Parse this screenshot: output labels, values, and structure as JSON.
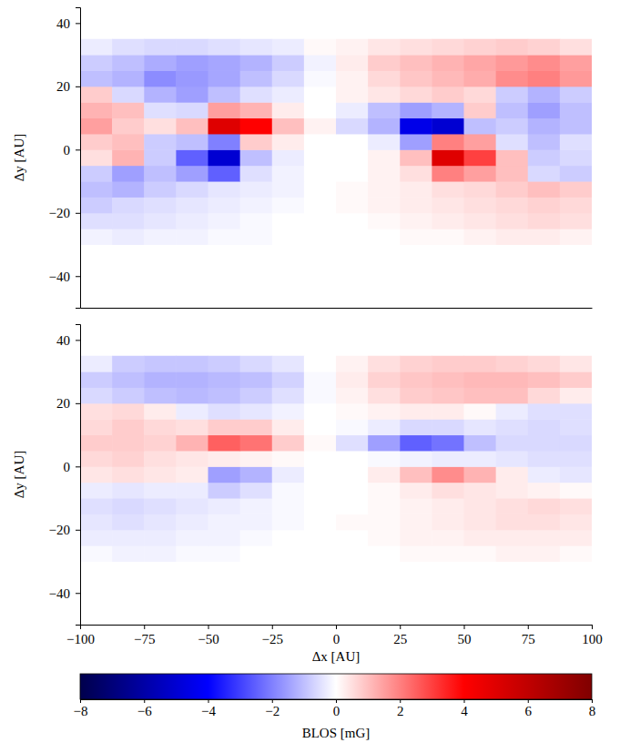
{
  "chart_data": [
    {
      "type": "heatmap",
      "x": [
        -93.75,
        -81.25,
        -68.75,
        -56.25,
        -43.75,
        -31.25,
        -18.75,
        -6.25,
        6.25,
        18.75,
        31.25,
        43.75,
        56.25,
        68.75,
        81.25,
        93.75
      ],
      "y": [
        -27.5,
        -22.5,
        -17.5,
        -12.5,
        -7.5,
        -2.5,
        2.5,
        7.5,
        12.5,
        17.5,
        22.5,
        27.5,
        32.5
      ],
      "values": [
        [
          -0.2,
          -0.3,
          -0.2,
          -0.2,
          -0.1,
          -0.1,
          0,
          0,
          0,
          0,
          0.1,
          0.1,
          0.2,
          0.3,
          0.3,
          0.2
        ],
        [
          -0.5,
          -0.5,
          -0.4,
          -0.3,
          -0.2,
          -0.1,
          0,
          0,
          0,
          0.1,
          0.2,
          0.3,
          0.4,
          0.5,
          0.6,
          0.5
        ],
        [
          -0.8,
          -0.6,
          -0.5,
          -0.4,
          -0.3,
          -0.2,
          -0.1,
          0,
          0.1,
          0.2,
          0.3,
          0.4,
          0.5,
          0.6,
          0.7,
          0.6
        ],
        [
          -1.0,
          -1.2,
          -0.8,
          -0.6,
          -0.4,
          -0.3,
          -0.2,
          0,
          0.1,
          0.2,
          0.3,
          0.5,
          0.6,
          0.8,
          1.0,
          0.8
        ],
        [
          -0.8,
          -1.5,
          -1.0,
          -1.5,
          -2.5,
          -0.5,
          -0.2,
          0,
          0,
          0.2,
          0.5,
          2.0,
          1.5,
          1.0,
          -0.6,
          -0.8
        ],
        [
          0.5,
          1.2,
          -0.8,
          -2.5,
          -5.0,
          -1.0,
          -0.3,
          0,
          0,
          0.2,
          1.0,
          5.0,
          3.0,
          1.0,
          -0.8,
          -0.6
        ],
        [
          0.8,
          1.0,
          -0.8,
          -1.0,
          -2.0,
          0.8,
          0.3,
          0,
          0,
          -0.3,
          -1.5,
          2.0,
          1.5,
          -0.5,
          -1.0,
          -0.5
        ],
        [
          1.5,
          0.8,
          0.5,
          1.0,
          5.0,
          4.0,
          1.0,
          0.2,
          -0.6,
          -1.2,
          -4.5,
          -5.0,
          -1.0,
          -0.8,
          -1.2,
          -1.0
        ],
        [
          1.2,
          1.0,
          -0.5,
          -0.6,
          1.5,
          1.2,
          0.3,
          0,
          -0.3,
          -1.0,
          -1.5,
          -1.2,
          0.8,
          -1.0,
          -1.5,
          -1.0
        ],
        [
          0.8,
          -0.6,
          -1.2,
          -1.5,
          -1.0,
          -0.5,
          -0.3,
          0,
          0.2,
          0.4,
          0.6,
          0.8,
          0.6,
          -0.8,
          -1.2,
          -0.8
        ],
        [
          -1.0,
          -1.2,
          -1.8,
          -1.6,
          -1.4,
          -1.0,
          -0.6,
          -0.1,
          0.2,
          0.6,
          0.9,
          1.1,
          1.3,
          1.8,
          2.0,
          1.6
        ],
        [
          -0.8,
          -1.0,
          -1.3,
          -1.5,
          -1.4,
          -1.2,
          -0.8,
          -0.2,
          0.3,
          0.8,
          1.0,
          1.2,
          1.4,
          1.6,
          1.8,
          1.5
        ],
        [
          -0.3,
          -0.5,
          -0.6,
          -0.6,
          -0.5,
          -0.4,
          -0.3,
          0.1,
          0.2,
          0.4,
          0.5,
          0.6,
          0.7,
          0.8,
          0.7,
          0.5
        ]
      ],
      "xlim": [
        -100,
        100
      ],
      "ylim": [
        -50,
        45
      ],
      "yticks": [
        {
          "value": -40,
          "label": "−40"
        },
        {
          "value": -20,
          "label": "−20"
        },
        0,
        20,
        40
      ],
      "ylabel": "Δy [AU]",
      "tick_labels": "y"
    },
    {
      "type": "heatmap",
      "x": [
        -93.75,
        -81.25,
        -68.75,
        -56.25,
        -43.75,
        -31.25,
        -18.75,
        -6.25,
        6.25,
        18.75,
        31.25,
        43.75,
        56.25,
        68.75,
        81.25,
        93.75
      ],
      "y": [
        -27.5,
        -22.5,
        -17.5,
        -12.5,
        -7.5,
        -2.5,
        2.5,
        7.5,
        12.5,
        17.5,
        22.5,
        27.5,
        32.5
      ],
      "values": [
        [
          -0.1,
          -0.2,
          -0.2,
          -0.1,
          -0.1,
          0,
          0,
          0,
          0,
          0,
          0.1,
          0.1,
          0.1,
          0.2,
          0.2,
          0.1
        ],
        [
          -0.3,
          -0.3,
          -0.3,
          -0.2,
          -0.2,
          -0.1,
          0,
          0,
          0,
          0.1,
          0.2,
          0.2,
          0.3,
          0.3,
          0.3,
          0.3
        ],
        [
          -0.4,
          -0.5,
          -0.4,
          -0.3,
          -0.2,
          -0.2,
          -0.1,
          0,
          0.1,
          0.1,
          0.2,
          0.3,
          0.4,
          0.5,
          0.5,
          0.4
        ],
        [
          -0.5,
          -0.6,
          -0.5,
          -0.4,
          -0.3,
          -0.2,
          -0.1,
          0,
          0,
          0.1,
          0.2,
          0.3,
          0.4,
          0.5,
          0.6,
          0.5
        ],
        [
          -0.3,
          -0.4,
          -0.3,
          -0.3,
          -0.8,
          -0.5,
          -0.1,
          0,
          0,
          0.1,
          0.3,
          0.5,
          0.4,
          0.3,
          0.2,
          0.1
        ],
        [
          0.4,
          0.5,
          0.4,
          0.3,
          -1.5,
          -1.2,
          -0.3,
          0,
          0,
          0.3,
          1.0,
          1.8,
          1.2,
          0.3,
          -0.3,
          -0.4
        ],
        [
          0.6,
          0.7,
          0.5,
          0.4,
          0.3,
          0.2,
          0.1,
          0,
          0,
          -0.1,
          -0.2,
          -0.3,
          -0.3,
          -0.4,
          -0.5,
          -0.5
        ],
        [
          0.8,
          0.8,
          0.7,
          1.2,
          2.5,
          2.2,
          0.8,
          0.1,
          -0.5,
          -1.5,
          -2.5,
          -2.2,
          -1.0,
          -0.6,
          -0.6,
          -0.6
        ],
        [
          0.6,
          0.8,
          0.6,
          0.5,
          0.8,
          0.8,
          0.3,
          0,
          -0.1,
          -0.3,
          -0.6,
          -0.6,
          -0.4,
          -0.5,
          -0.6,
          -0.5
        ],
        [
          0.5,
          0.6,
          0.3,
          -0.3,
          -0.5,
          -0.4,
          -0.2,
          0,
          0.1,
          0.2,
          0.3,
          0.3,
          0.1,
          -0.3,
          -0.5,
          -0.5
        ],
        [
          -0.6,
          -0.8,
          -1.0,
          -1.1,
          -1.0,
          -0.8,
          -0.5,
          -0.1,
          0.2,
          0.5,
          0.8,
          0.9,
          1.0,
          1.0,
          0.6,
          0.3
        ],
        [
          -0.8,
          -1.0,
          -1.2,
          -1.2,
          -1.1,
          -1.0,
          -0.7,
          -0.1,
          0.3,
          0.7,
          0.9,
          1.0,
          1.1,
          1.1,
          1.0,
          0.8
        ],
        [
          -0.3,
          -0.8,
          -0.9,
          -0.9,
          -0.8,
          -0.6,
          -0.4,
          0,
          0.2,
          0.5,
          0.7,
          0.8,
          0.8,
          0.7,
          0.6,
          0.4
        ]
      ],
      "xlim": [
        -100,
        100
      ],
      "ylim": [
        -50,
        45
      ],
      "xticks": [
        {
          "value": -100,
          "label": "−100"
        },
        {
          "value": -75,
          "label": "−75"
        },
        {
          "value": -50,
          "label": "−50"
        },
        {
          "value": -25,
          "label": "−25"
        },
        0,
        25,
        50,
        75,
        100
      ],
      "yticks": [
        {
          "value": -40,
          "label": "−40"
        },
        {
          "value": -20,
          "label": "−20"
        },
        0,
        20,
        40
      ],
      "xlabel": "Δx [AU]",
      "ylabel": "Δy [AU]",
      "colorbar": {
        "label": "BLOS [mG]",
        "range": [
          -8,
          8
        ],
        "ticks": [
          {
            "value": -8,
            "label": "−8"
          },
          {
            "value": -6,
            "label": "−6"
          },
          {
            "value": -4,
            "label": "−4"
          },
          {
            "value": -2,
            "label": "−2"
          },
          0,
          2,
          4,
          6,
          8
        ]
      }
    }
  ]
}
